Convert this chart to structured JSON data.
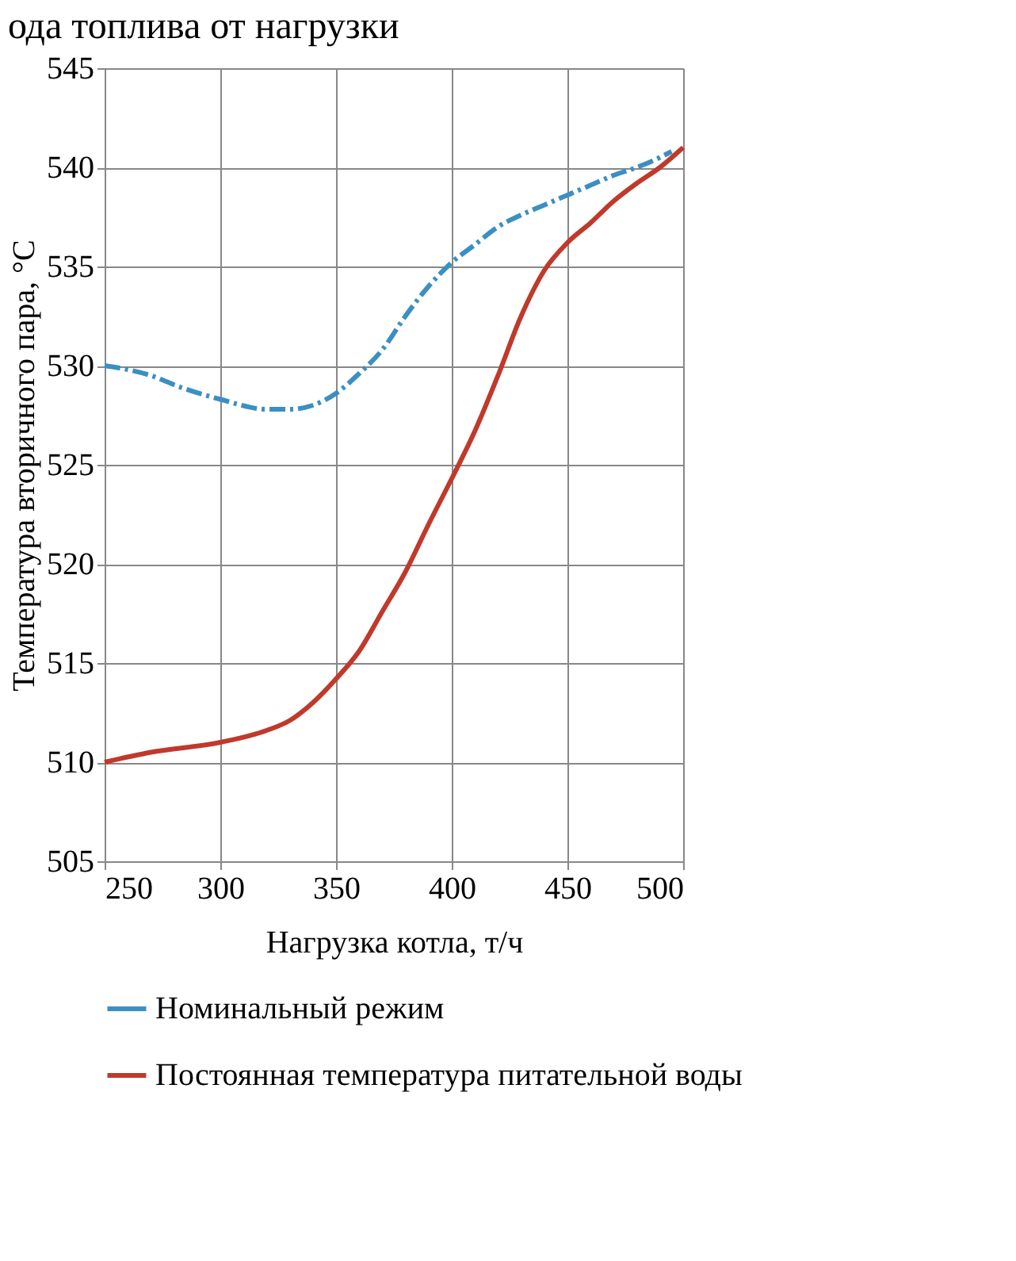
{
  "chart_data": {
    "type": "line",
    "title": "ода топлива от нагрузки",
    "xlabel": "Нагрузка котла, т/ч",
    "ylabel": "Температура вторичного пара, °С",
    "xlim": [
      250,
      500
    ],
    "xticks": [
      250,
      300,
      350,
      400,
      450,
      500
    ],
    "ylim": [
      505,
      545
    ],
    "yticks": [
      505,
      510,
      515,
      520,
      525,
      530,
      535,
      540,
      545
    ],
    "grid": true,
    "legend": "bottom",
    "marker": "none",
    "series": [
      {
        "name": "Номинальный режим",
        "color": "#3b8fc2",
        "line_style": "dashed",
        "x": [
          250,
          270,
          283,
          300,
          320,
          330,
          340,
          350,
          360,
          370,
          380,
          390,
          400,
          410,
          420,
          430,
          440,
          450,
          460,
          470,
          480,
          490,
          495
        ],
        "values": [
          530,
          529.5,
          528.9,
          528.3,
          527.8,
          527.8,
          528,
          528.6,
          529.6,
          530.8,
          532.5,
          534,
          535.2,
          536.1,
          537,
          537.6,
          538.1,
          538.6,
          539.1,
          539.6,
          540,
          540.5,
          540.8
        ]
      },
      {
        "name": "Постоянная температура питательной воды",
        "color": "#c0392b",
        "line_style": "solid",
        "x": [
          250,
          270,
          300,
          320,
          330,
          340,
          350,
          360,
          370,
          380,
          390,
          400,
          410,
          420,
          430,
          440,
          450,
          460,
          470,
          480,
          490,
          500
        ],
        "values": [
          510,
          510.5,
          511,
          511.6,
          512.1,
          513,
          514.2,
          515.6,
          517.6,
          519.6,
          522,
          524.3,
          526.7,
          529.5,
          532.5,
          534.8,
          536.2,
          537.2,
          538.3,
          539.2,
          540,
          541
        ]
      }
    ]
  }
}
